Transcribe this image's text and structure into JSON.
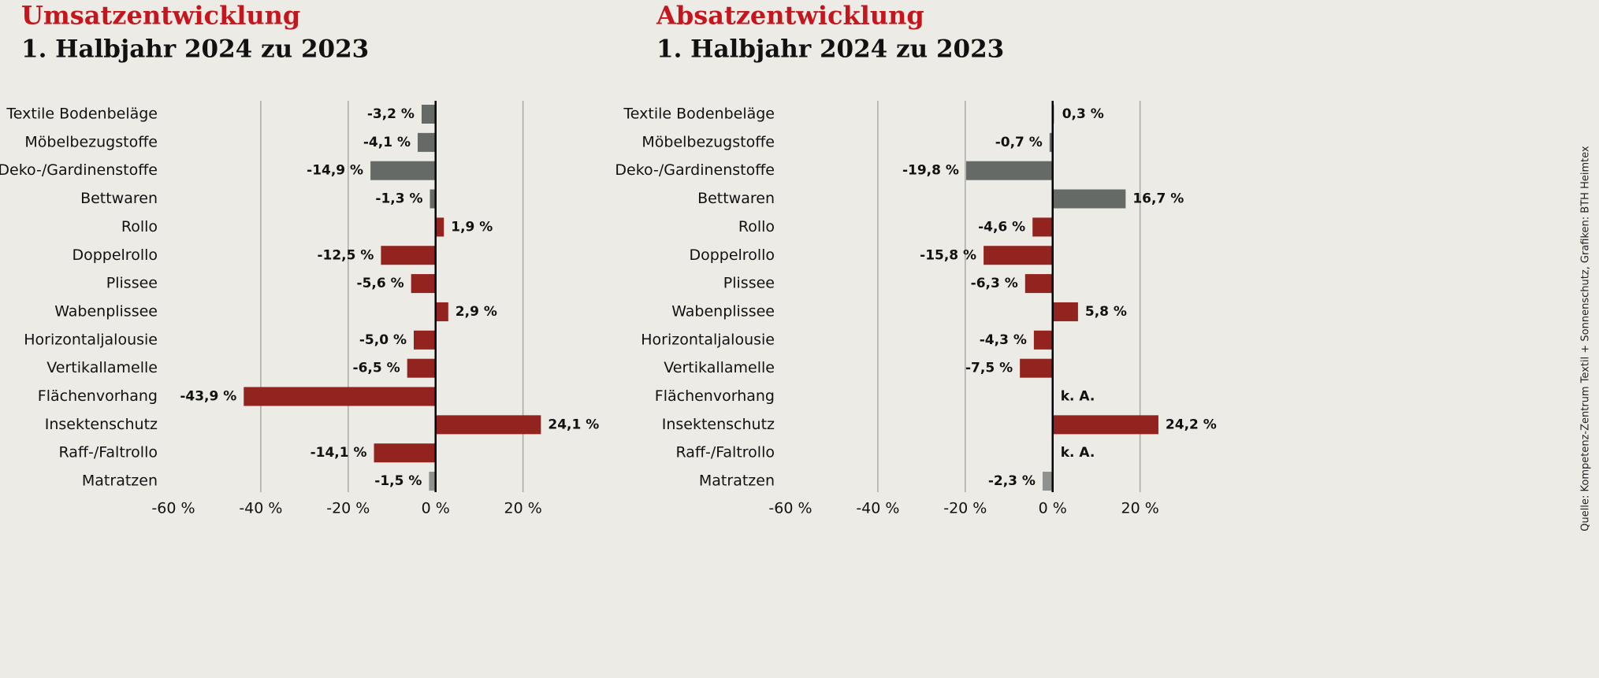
{
  "chart_data": [
    {
      "type": "bar",
      "orientation": "horizontal",
      "title": "Umsatzentwicklung",
      "subtitle": "1. Halbjahr 2024 zu 2023",
      "categories": [
        "Textile Bodenbeläge",
        "Möbelbezugstoffe",
        "Deko-/Gardinenstoffe",
        "Bettwaren",
        "Rollo",
        "Doppelrollo",
        "Plissee",
        "Wabenplissee",
        "Horizontaljalousie",
        "Vertikallamelle",
        "Flächenvorhang",
        "Insektenschutz",
        "Raff-/Faltrollo",
        "Matratzen"
      ],
      "values": [
        -3.2,
        -4.1,
        -14.9,
        -1.3,
        1.9,
        -12.5,
        -5.6,
        2.9,
        -5.0,
        -6.5,
        -43.9,
        24.1,
        -14.1,
        -1.5
      ],
      "value_labels": [
        "-3,2 %",
        "-4,1 %",
        "-14,9 %",
        "-1,3 %",
        "1,9 %",
        "-12,5 %",
        "-5,6 %",
        "2,9 %",
        "-5,0 %",
        "-6,5 %",
        "-43,9 %",
        "24,1 %",
        "-14,1 %",
        "-1,5 %"
      ],
      "colors": [
        "#656a66",
        "#656a66",
        "#656a66",
        "#656a66",
        "#92231f",
        "#92231f",
        "#92231f",
        "#92231f",
        "#92231f",
        "#92231f",
        "#92231f",
        "#92231f",
        "#92231f",
        "#8e918e"
      ],
      "xlim": [
        -60,
        28
      ],
      "xticks": [
        {
          "value": -60,
          "label": "-60 %"
        },
        {
          "value": -40,
          "label": "-40 %"
        },
        {
          "value": -20,
          "label": "-20 %"
        },
        {
          "value": 0,
          "label": "0 %"
        },
        {
          "value": 20,
          "label": "20 %"
        }
      ],
      "grid": true
    },
    {
      "type": "bar",
      "orientation": "horizontal",
      "title": "Absatzentwicklung",
      "subtitle": "1. Halbjahr 2024 zu 2023",
      "categories": [
        "Textile Bodenbeläge",
        "Möbelbezugstoffe",
        "Deko-/Gardinenstoffe",
        "Bettwaren",
        "Rollo",
        "Doppelrollo",
        "Plissee",
        "Wabenplissee",
        "Horizontaljalousie",
        "Vertikallamelle",
        "Flächenvorhang",
        "Insektenschutz",
        "Raff-/Faltrollo",
        "Matratzen"
      ],
      "values": [
        0.3,
        -0.7,
        -19.8,
        16.7,
        -4.6,
        -15.8,
        -6.3,
        5.8,
        -4.3,
        -7.5,
        null,
        24.2,
        null,
        -2.3
      ],
      "value_labels": [
        "0,3 %",
        "-0,7 %",
        "-19,8 %",
        "16,7 %",
        "-4,6 %",
        "-15,8 %",
        "-6,3 %",
        "5,8 %",
        "-4,3 %",
        "-7,5 %",
        "k. A.",
        "24,2 %",
        "k. A.",
        "-2,3 %"
      ],
      "colors": [
        "#656a66",
        "#656a66",
        "#656a66",
        "#656a66",
        "#92231f",
        "#92231f",
        "#92231f",
        "#92231f",
        "#92231f",
        "#92231f",
        "#92231f",
        "#92231f",
        "#92231f",
        "#8e918e"
      ],
      "xlim": [
        -60,
        28
      ],
      "xticks": [
        {
          "value": -60,
          "label": "-60 %"
        },
        {
          "value": -40,
          "label": "-40 %"
        },
        {
          "value": -20,
          "label": "-20 %"
        },
        {
          "value": 0,
          "label": "0 %"
        },
        {
          "value": 20,
          "label": "20 %"
        }
      ],
      "grid": true
    }
  ],
  "source": "Quelle: Kompetenz-Zentrum Textil + Sonnenschutz, Grafiken: BTH Heimtex"
}
